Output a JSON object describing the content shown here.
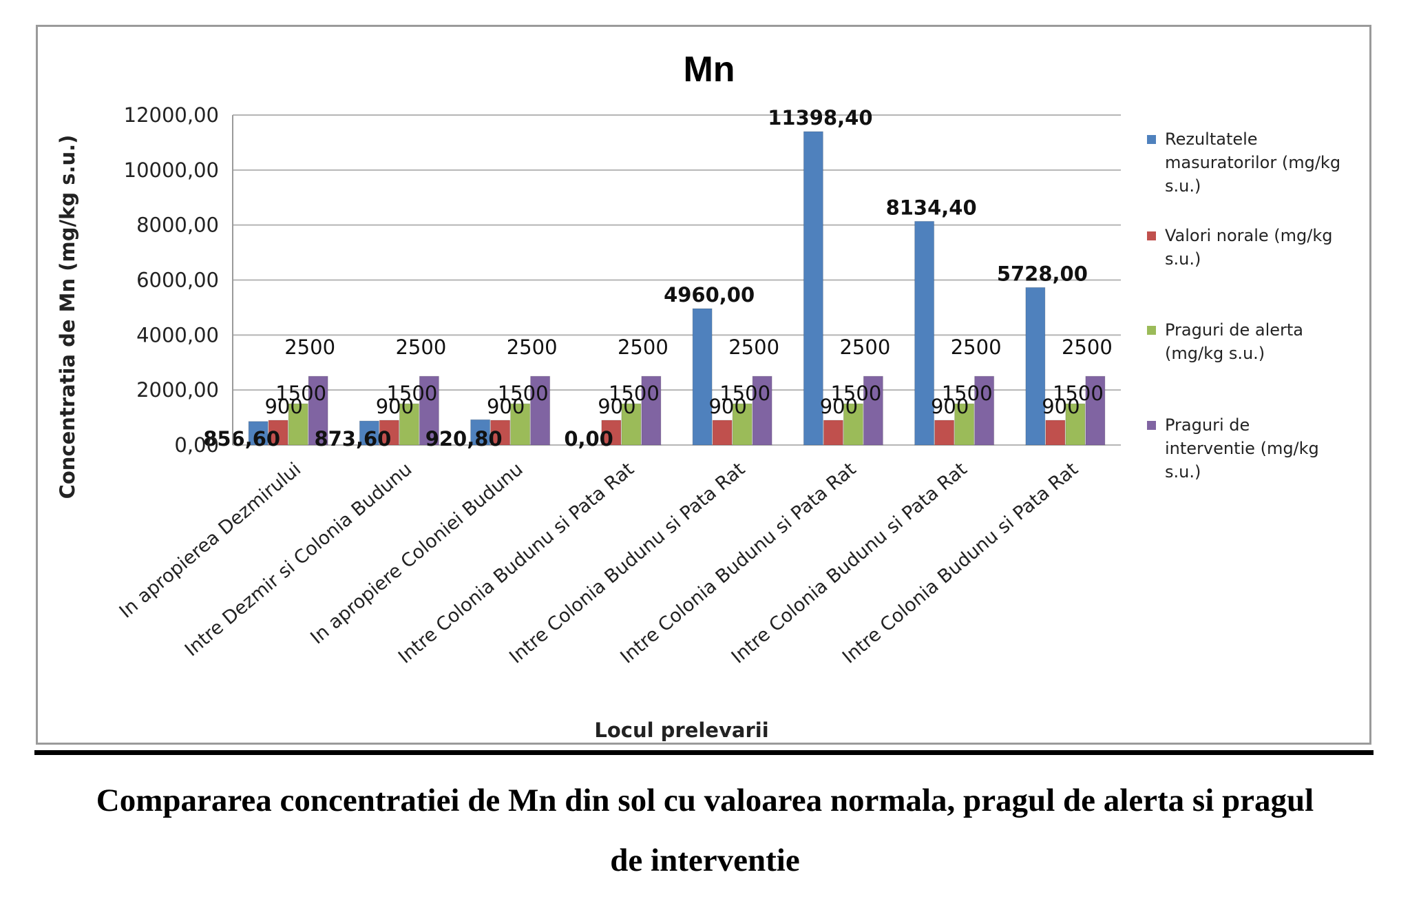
{
  "chart_data": {
    "type": "bar",
    "title": "Mn",
    "xlabel": "Locul prelevarii",
    "ylabel": "Concentratia de Mn (mg/kg s.u.)",
    "ylim": [
      0,
      12000
    ],
    "yticks": [
      "0,00",
      "2000,00",
      "4000,00",
      "6000,00",
      "8000,00",
      "10000,00",
      "12000,00"
    ],
    "grid": true,
    "legend_position": "right",
    "categories": [
      "In apropierea Dezmirului",
      "Intre Dezmir si Colonia Budunu",
      "In apropiere Coloniei Budunu",
      "Intre Colonia Budunu si Pata Rat",
      "Intre Colonia Budunu si Pata Rat",
      "Intre Colonia Budunu si Pata Rat",
      "Intre Colonia Budunu si Pata Rat",
      "Intre Colonia Budunu si Pata Rat"
    ],
    "series": [
      {
        "name": "Rezultatele masuratorilor (mg/kg s.u.)",
        "color": "#4f81bd",
        "values": [
          856.6,
          873.6,
          920.8,
          0,
          4960,
          11398.4,
          8134.4,
          5728
        ],
        "labels": [
          "856,60",
          "873,60",
          "920,80",
          "0,00",
          "4960,00",
          "11398,40",
          "8134,40",
          "5728,00"
        ]
      },
      {
        "name": "Valori norale (mg/kg s.u.)",
        "color": "#c0504d",
        "values": [
          900,
          900,
          900,
          900,
          900,
          900,
          900,
          900
        ],
        "labels": [
          "900",
          "900",
          "900",
          "900",
          "900",
          "900",
          "900",
          "900"
        ]
      },
      {
        "name": "Praguri de alerta (mg/kg s.u.)",
        "color": "#9bbb59",
        "values": [
          1500,
          1500,
          1500,
          1500,
          1500,
          1500,
          1500,
          1500
        ],
        "labels": [
          "1500",
          "1500",
          "1500",
          "1500",
          "1500",
          "1500",
          "1500",
          "1500"
        ]
      },
      {
        "name": "Praguri de interventie (mg/kg s.u.)",
        "color": "#8064a2",
        "values": [
          2500,
          2500,
          2500,
          2500,
          2500,
          2500,
          2500,
          2500
        ],
        "labels": [
          "2500",
          "2500",
          "2500",
          "2500",
          "2500",
          "2500",
          "2500",
          "2500"
        ]
      }
    ]
  },
  "caption": {
    "line1": "Compararea concentratiei de Mn din sol cu valoarea normala, pragul de alerta si pragul",
    "line2": "de interventie"
  }
}
